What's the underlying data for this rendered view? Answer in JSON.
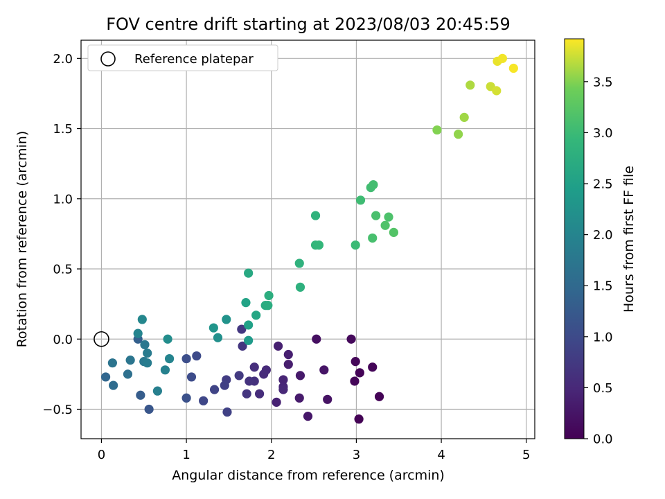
{
  "chart_data": {
    "type": "scatter",
    "title": "FOV centre drift starting at 2023/08/03 20:45:59",
    "xlabel": "Angular distance from reference (arcmin)",
    "ylabel": "Rotation from reference (arcmin)",
    "xlim": [
      -0.24,
      5.1
    ],
    "ylim": [
      -0.71,
      2.13
    ],
    "xticks": [
      0,
      1,
      2,
      3,
      4,
      5
    ],
    "yticks": [
      -0.5,
      0.0,
      0.5,
      1.0,
      1.5,
      2.0
    ],
    "xtick_labels": [
      "0",
      "1",
      "2",
      "3",
      "4",
      "5"
    ],
    "ytick_labels": [
      "−0.5",
      "0.0",
      "0.5",
      "1.0",
      "1.5",
      "2.0"
    ],
    "grid": true,
    "colormap": "viridis",
    "colorbar": {
      "label": "Hours from first FF file",
      "range": [
        0.0,
        3.92
      ],
      "ticks": [
        0.0,
        0.5,
        1.0,
        1.5,
        2.0,
        2.5,
        3.0,
        3.5
      ],
      "tick_labels": [
        "0.0",
        "0.5",
        "1.0",
        "1.5",
        "2.0",
        "2.5",
        "3.0",
        "3.5"
      ]
    },
    "legend": {
      "placement": "top-left",
      "entries": [
        "Reference platepar"
      ]
    },
    "reference_point": {
      "x": 0.0,
      "y": 0.0
    },
    "points": [
      {
        "x": 3.03,
        "y": -0.57,
        "c": 0.02
      },
      {
        "x": 3.27,
        "y": -0.41,
        "c": 0.03
      },
      {
        "x": 3.04,
        "y": -0.24,
        "c": 0.04
      },
      {
        "x": 3.19,
        "y": -0.2,
        "c": 0.05
      },
      {
        "x": 2.98,
        "y": -0.3,
        "c": 0.06
      },
      {
        "x": 2.99,
        "y": -0.16,
        "c": 0.07
      },
      {
        "x": 2.94,
        "y": 0.0,
        "c": 0.1
      },
      {
        "x": 2.53,
        "y": 0.0,
        "c": 0.18
      },
      {
        "x": 2.66,
        "y": -0.43,
        "c": 0.22
      },
      {
        "x": 2.62,
        "y": -0.22,
        "c": 0.25
      },
      {
        "x": 2.43,
        "y": -0.55,
        "c": 0.28
      },
      {
        "x": 2.34,
        "y": -0.26,
        "c": 0.3
      },
      {
        "x": 2.33,
        "y": -0.42,
        "c": 0.33
      },
      {
        "x": 2.2,
        "y": -0.18,
        "c": 0.36
      },
      {
        "x": 2.2,
        "y": -0.11,
        "c": 0.38
      },
      {
        "x": 2.08,
        "y": -0.05,
        "c": 0.4
      },
      {
        "x": 2.06,
        "y": -0.45,
        "c": 0.42
      },
      {
        "x": 2.14,
        "y": -0.29,
        "c": 0.45
      },
      {
        "x": 2.14,
        "y": -0.34,
        "c": 0.47
      },
      {
        "x": 2.14,
        "y": -0.36,
        "c": 0.5
      },
      {
        "x": 1.94,
        "y": -0.22,
        "c": 0.52
      },
      {
        "x": 1.91,
        "y": -0.25,
        "c": 0.55
      },
      {
        "x": 1.86,
        "y": -0.39,
        "c": 0.57
      },
      {
        "x": 1.8,
        "y": -0.2,
        "c": 0.6
      },
      {
        "x": 1.8,
        "y": -0.3,
        "c": 0.62
      },
      {
        "x": 1.74,
        "y": -0.3,
        "c": 0.65
      },
      {
        "x": 1.71,
        "y": -0.39,
        "c": 0.68
      },
      {
        "x": 1.66,
        "y": -0.05,
        "c": 0.7
      },
      {
        "x": 1.65,
        "y": 0.07,
        "c": 0.72
      },
      {
        "x": 1.62,
        "y": -0.26,
        "c": 0.75
      },
      {
        "x": 1.47,
        "y": -0.29,
        "c": 0.8
      },
      {
        "x": 1.45,
        "y": -0.33,
        "c": 0.83
      },
      {
        "x": 1.48,
        "y": -0.52,
        "c": 0.86
      },
      {
        "x": 1.33,
        "y": -0.36,
        "c": 0.9
      },
      {
        "x": 1.2,
        "y": -0.44,
        "c": 0.95
      },
      {
        "x": 1.12,
        "y": -0.12,
        "c": 1.0
      },
      {
        "x": 1.06,
        "y": -0.27,
        "c": 1.03
      },
      {
        "x": 1.0,
        "y": -0.14,
        "c": 1.06
      },
      {
        "x": 1.0,
        "y": -0.42,
        "c": 1.1
      },
      {
        "x": 0.56,
        "y": -0.5,
        "c": 1.18
      },
      {
        "x": 0.46,
        "y": -0.4,
        "c": 1.3
      },
      {
        "x": 0.43,
        "y": 0.0,
        "c": 1.35
      },
      {
        "x": 0.05,
        "y": -0.27,
        "c": 1.45
      },
      {
        "x": 0.14,
        "y": -0.33,
        "c": 1.55
      },
      {
        "x": 0.31,
        "y": -0.25,
        "c": 1.62
      },
      {
        "x": 0.13,
        "y": -0.17,
        "c": 1.7
      },
      {
        "x": 0.34,
        "y": -0.15,
        "c": 1.72
      },
      {
        "x": 0.51,
        "y": -0.04,
        "c": 1.75
      },
      {
        "x": 0.5,
        "y": -0.16,
        "c": 1.78
      },
      {
        "x": 0.54,
        "y": -0.1,
        "c": 1.82
      },
      {
        "x": 0.54,
        "y": -0.17,
        "c": 1.85
      },
      {
        "x": 0.66,
        "y": -0.37,
        "c": 1.9
      },
      {
        "x": 0.75,
        "y": -0.22,
        "c": 1.95
      },
      {
        "x": 0.8,
        "y": -0.14,
        "c": 2.0
      },
      {
        "x": 0.43,
        "y": 0.04,
        "c": 2.0
      },
      {
        "x": 0.48,
        "y": 0.14,
        "c": 2.05
      },
      {
        "x": 0.78,
        "y": 0.0,
        "c": 2.15
      },
      {
        "x": 1.37,
        "y": 0.01,
        "c": 2.2
      },
      {
        "x": 1.47,
        "y": 0.14,
        "c": 2.25
      },
      {
        "x": 1.32,
        "y": 0.08,
        "c": 2.3
      },
      {
        "x": 1.73,
        "y": -0.01,
        "c": 2.4
      },
      {
        "x": 1.73,
        "y": 0.1,
        "c": 2.5
      },
      {
        "x": 1.7,
        "y": 0.26,
        "c": 2.55
      },
      {
        "x": 1.82,
        "y": 0.17,
        "c": 2.6
      },
      {
        "x": 1.73,
        "y": 0.47,
        "c": 2.65
      },
      {
        "x": 1.93,
        "y": 0.24,
        "c": 2.7
      },
      {
        "x": 1.96,
        "y": 0.24,
        "c": 2.72
      },
      {
        "x": 1.97,
        "y": 0.31,
        "c": 2.75
      },
      {
        "x": 2.34,
        "y": 0.37,
        "c": 2.8
      },
      {
        "x": 2.33,
        "y": 0.54,
        "c": 2.82
      },
      {
        "x": 2.52,
        "y": 0.88,
        "c": 2.85
      },
      {
        "x": 2.52,
        "y": 0.67,
        "c": 2.9
      },
      {
        "x": 2.56,
        "y": 0.67,
        "c": 2.92
      },
      {
        "x": 2.99,
        "y": 0.67,
        "c": 3.0
      },
      {
        "x": 3.05,
        "y": 0.99,
        "c": 3.03
      },
      {
        "x": 3.17,
        "y": 1.08,
        "c": 3.05
      },
      {
        "x": 3.2,
        "y": 1.1,
        "c": 3.07
      },
      {
        "x": 3.19,
        "y": 0.72,
        "c": 3.1
      },
      {
        "x": 3.23,
        "y": 0.88,
        "c": 3.12
      },
      {
        "x": 3.38,
        "y": 0.87,
        "c": 3.15
      },
      {
        "x": 3.34,
        "y": 0.81,
        "c": 3.17
      },
      {
        "x": 3.44,
        "y": 0.76,
        "c": 3.2
      },
      {
        "x": 3.95,
        "y": 1.49,
        "c": 3.5
      },
      {
        "x": 4.2,
        "y": 1.46,
        "c": 3.55
      },
      {
        "x": 4.27,
        "y": 1.58,
        "c": 3.6
      },
      {
        "x": 4.34,
        "y": 1.81,
        "c": 3.65
      },
      {
        "x": 4.58,
        "y": 1.8,
        "c": 3.75
      },
      {
        "x": 4.65,
        "y": 1.77,
        "c": 3.78
      },
      {
        "x": 4.66,
        "y": 1.98,
        "c": 3.85
      },
      {
        "x": 4.72,
        "y": 2.0,
        "c": 3.88
      },
      {
        "x": 4.85,
        "y": 1.93,
        "c": 3.9
      }
    ]
  }
}
